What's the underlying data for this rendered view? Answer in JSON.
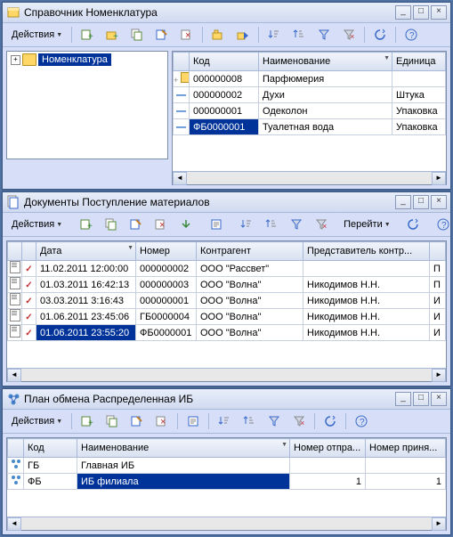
{
  "window1": {
    "title": "Справочник Номенклатура",
    "actions_label": "Действия",
    "tree_root": "Номенклатура",
    "columns": [
      "",
      "Код",
      "Наименование",
      "Единица"
    ],
    "rows": [
      {
        "marker": "folder",
        "code": "000000008",
        "name": "Парфюмерия",
        "unit": ""
      },
      {
        "marker": "dash",
        "code": "000000002",
        "name": "Духи",
        "unit": "Штука"
      },
      {
        "marker": "dash",
        "code": "000000001",
        "name": "Одеколон",
        "unit": "Упаковка"
      },
      {
        "marker": "dash",
        "code": "ФБ0000001",
        "name": "Туалетная вода",
        "unit": "Упаковка",
        "selected_col": "code"
      }
    ]
  },
  "window2": {
    "title": "Документы Поступление материалов",
    "actions_label": "Действия",
    "goto_label": "Перейти",
    "columns": [
      "",
      "",
      "Дата",
      "Номер",
      "Контрагент",
      "Представитель контр...",
      ""
    ],
    "rows": [
      {
        "date": "11.02.2011 12:00:00",
        "num": "000000002",
        "contr": "ООО \"Рассвет\"",
        "rep": "",
        "tail": "П"
      },
      {
        "date": "01.03.2011 16:42:13",
        "num": "000000003",
        "contr": "ООО \"Волна\"",
        "rep": "Никодимов Н.Н.",
        "tail": "П"
      },
      {
        "date": "03.03.2011 3:16:43",
        "num": "000000001",
        "contr": "ООО \"Волна\"",
        "rep": "Никодимов Н.Н.",
        "tail": "И"
      },
      {
        "date": "01.06.2011 23:45:06",
        "num": "ГБ0000004",
        "contr": "ООО \"Волна\"",
        "rep": "Никодимов Н.Н.",
        "tail": "И"
      },
      {
        "date": "01.06.2011 23:55:20",
        "num": "ФБ0000001",
        "contr": "ООО \"Волна\"",
        "rep": "Никодимов Н.Н.",
        "tail": "И",
        "selected_col": "date"
      }
    ]
  },
  "window3": {
    "title": "План обмена Распределенная ИБ",
    "actions_label": "Действия",
    "columns": [
      "",
      "Код",
      "Наименование",
      "Номер отпра...",
      "Номер приня..."
    ],
    "rows": [
      {
        "code": "ГБ",
        "name": "Главная ИБ",
        "sent": "",
        "recv": ""
      },
      {
        "code": "ФБ",
        "name": "ИБ филиала",
        "sent": "1",
        "recv": "1",
        "selected_col": "name"
      }
    ]
  }
}
